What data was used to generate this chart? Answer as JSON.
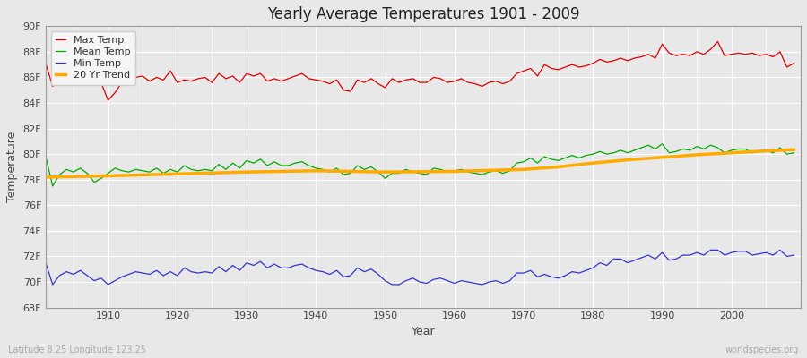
{
  "title": "Yearly Average Temperatures 1901 - 2009",
  "xlabel": "Year",
  "ylabel": "Temperature",
  "subtitle_left": "Latitude 8.25 Longitude 123.25",
  "subtitle_right": "worldspecies.org",
  "years": [
    1901,
    1902,
    1903,
    1904,
    1905,
    1906,
    1907,
    1908,
    1909,
    1910,
    1911,
    1912,
    1913,
    1914,
    1915,
    1916,
    1917,
    1918,
    1919,
    1920,
    1921,
    1922,
    1923,
    1924,
    1925,
    1926,
    1927,
    1928,
    1929,
    1930,
    1931,
    1932,
    1933,
    1934,
    1935,
    1936,
    1937,
    1938,
    1939,
    1940,
    1941,
    1942,
    1943,
    1944,
    1945,
    1946,
    1947,
    1948,
    1949,
    1950,
    1951,
    1952,
    1953,
    1954,
    1955,
    1956,
    1957,
    1958,
    1959,
    1960,
    1961,
    1962,
    1963,
    1964,
    1965,
    1966,
    1967,
    1968,
    1969,
    1970,
    1971,
    1972,
    1973,
    1974,
    1975,
    1976,
    1977,
    1978,
    1979,
    1980,
    1981,
    1982,
    1983,
    1984,
    1985,
    1986,
    1987,
    1988,
    1989,
    1990,
    1991,
    1992,
    1993,
    1994,
    1995,
    1996,
    1997,
    1998,
    1999,
    2000,
    2001,
    2002,
    2003,
    2004,
    2005,
    2006,
    2007,
    2008,
    2009
  ],
  "max_temp": [
    87.1,
    85.3,
    86.0,
    86.8,
    86.2,
    86.5,
    85.9,
    85.4,
    85.6,
    84.2,
    84.8,
    85.6,
    86.3,
    86.0,
    86.1,
    85.7,
    86.0,
    85.8,
    86.5,
    85.6,
    85.8,
    85.7,
    85.9,
    86.0,
    85.6,
    86.3,
    85.9,
    86.1,
    85.6,
    86.3,
    86.1,
    86.3,
    85.7,
    85.9,
    85.7,
    85.9,
    86.1,
    86.3,
    85.9,
    85.8,
    85.7,
    85.5,
    85.8,
    85.0,
    84.9,
    85.8,
    85.6,
    85.9,
    85.5,
    85.2,
    85.9,
    85.6,
    85.8,
    85.9,
    85.6,
    85.6,
    86.0,
    85.9,
    85.6,
    85.7,
    85.9,
    85.6,
    85.5,
    85.3,
    85.6,
    85.7,
    85.5,
    85.7,
    86.3,
    86.5,
    86.7,
    86.1,
    87.0,
    86.7,
    86.6,
    86.8,
    87.0,
    86.8,
    86.9,
    87.1,
    87.4,
    87.2,
    87.3,
    87.5,
    87.3,
    87.5,
    87.6,
    87.8,
    87.5,
    88.6,
    87.9,
    87.7,
    87.8,
    87.7,
    88.0,
    87.8,
    88.2,
    88.8,
    87.7,
    87.8,
    87.9,
    87.8,
    87.9,
    87.7,
    87.8,
    87.6,
    88.0,
    86.8,
    87.1
  ],
  "mean_temp": [
    79.8,
    77.5,
    78.4,
    78.8,
    78.6,
    78.9,
    78.5,
    77.8,
    78.1,
    78.5,
    78.9,
    78.7,
    78.6,
    78.8,
    78.7,
    78.6,
    78.9,
    78.5,
    78.8,
    78.6,
    79.1,
    78.8,
    78.7,
    78.8,
    78.7,
    79.2,
    78.8,
    79.3,
    78.9,
    79.5,
    79.3,
    79.6,
    79.1,
    79.4,
    79.1,
    79.1,
    79.3,
    79.4,
    79.1,
    78.9,
    78.8,
    78.6,
    78.9,
    78.4,
    78.5,
    79.1,
    78.8,
    79.0,
    78.6,
    78.1,
    78.5,
    78.5,
    78.8,
    78.6,
    78.5,
    78.4,
    78.9,
    78.8,
    78.6,
    78.7,
    78.8,
    78.6,
    78.5,
    78.4,
    78.6,
    78.7,
    78.5,
    78.7,
    79.3,
    79.4,
    79.7,
    79.3,
    79.8,
    79.6,
    79.5,
    79.7,
    79.9,
    79.7,
    79.9,
    80.0,
    80.2,
    80.0,
    80.1,
    80.3,
    80.1,
    80.3,
    80.5,
    80.7,
    80.4,
    80.8,
    80.1,
    80.2,
    80.4,
    80.3,
    80.6,
    80.4,
    80.7,
    80.5,
    80.1,
    80.3,
    80.4,
    80.4,
    80.1,
    80.2,
    80.3,
    80.1,
    80.5,
    80.0,
    80.1
  ],
  "min_temp": [
    71.5,
    69.8,
    70.5,
    70.8,
    70.6,
    70.9,
    70.5,
    70.1,
    70.3,
    69.8,
    70.1,
    70.4,
    70.6,
    70.8,
    70.7,
    70.6,
    70.9,
    70.5,
    70.8,
    70.5,
    71.1,
    70.8,
    70.7,
    70.8,
    70.7,
    71.2,
    70.8,
    71.3,
    70.9,
    71.5,
    71.3,
    71.6,
    71.1,
    71.4,
    71.1,
    71.1,
    71.3,
    71.4,
    71.1,
    70.9,
    70.8,
    70.6,
    70.9,
    70.4,
    70.5,
    71.1,
    70.8,
    71.0,
    70.6,
    70.1,
    69.8,
    69.8,
    70.1,
    70.3,
    70.0,
    69.9,
    70.2,
    70.3,
    70.1,
    69.9,
    70.1,
    70.0,
    69.9,
    69.8,
    70.0,
    70.1,
    69.9,
    70.1,
    70.7,
    70.7,
    70.9,
    70.4,
    70.6,
    70.4,
    70.3,
    70.5,
    70.8,
    70.7,
    70.9,
    71.1,
    71.5,
    71.3,
    71.8,
    71.8,
    71.5,
    71.7,
    71.9,
    72.1,
    71.8,
    72.3,
    71.7,
    71.8,
    72.1,
    72.1,
    72.3,
    72.1,
    72.5,
    72.5,
    72.1,
    72.3,
    72.4,
    72.4,
    72.1,
    72.2,
    72.3,
    72.1,
    72.5,
    72.0,
    72.1
  ],
  "trend_years": [
    1901,
    1910,
    1920,
    1930,
    1940,
    1950,
    1960,
    1970,
    1975,
    1980,
    1985,
    1990,
    1995,
    2000,
    2005,
    2009
  ],
  "trend_temp": [
    78.2,
    78.3,
    78.45,
    78.6,
    78.7,
    78.6,
    78.65,
    78.8,
    79.0,
    79.3,
    79.55,
    79.75,
    79.95,
    80.1,
    80.25,
    80.35
  ],
  "max_color": "#dd0000",
  "mean_color": "#00aa00",
  "min_color": "#3333cc",
  "trend_color": "#ffaa00",
  "bg_color": "#e8e8e8",
  "plot_bg_color": "#e8e8e8",
  "grid_color": "#ffffff",
  "ylim": [
    68,
    90
  ],
  "yticks": [
    68,
    70,
    72,
    74,
    76,
    78,
    80,
    82,
    84,
    86,
    88,
    90
  ],
  "ytick_labels": [
    "68F",
    "70F",
    "72F",
    "74F",
    "76F",
    "78F",
    "80F",
    "82F",
    "84F",
    "86F",
    "88F",
    "90F"
  ],
  "xticks": [
    1910,
    1920,
    1930,
    1940,
    1950,
    1960,
    1970,
    1980,
    1990,
    2000
  ],
  "xlim": [
    1901,
    2010
  ]
}
